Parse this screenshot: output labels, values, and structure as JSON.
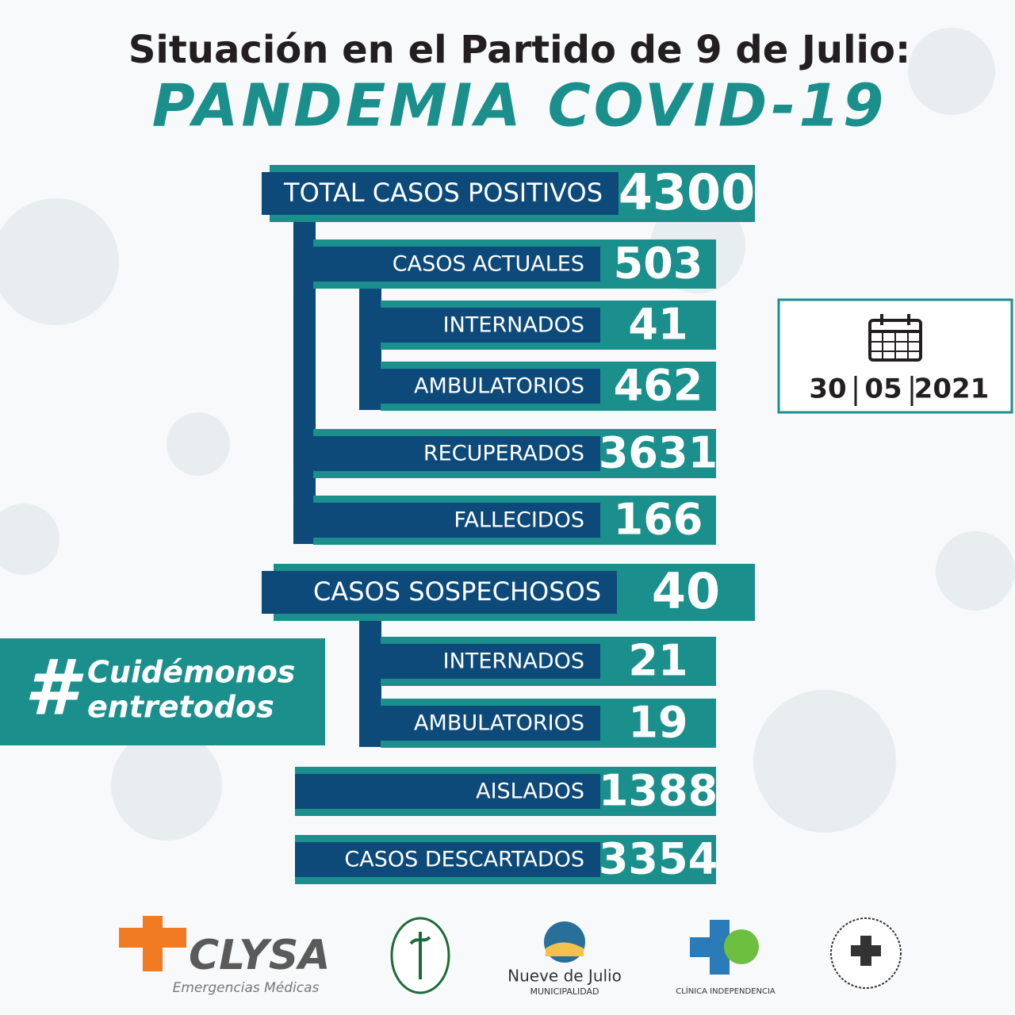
{
  "header": {
    "title": "Situación en el Partido de 9 de Julio:",
    "subtitle": "PANDEMIA COVID-19"
  },
  "rows": [
    {
      "label": "TOTAL CASOS POSITIVOS",
      "value": 4300
    },
    {
      "label": "CASOS ACTUALES",
      "value": 503
    },
    {
      "label": "INTERNADOS",
      "value": 41
    },
    {
      "label": "AMBULATORIOS",
      "value": 462
    },
    {
      "label": "RECUPERADOS",
      "value": 3631
    },
    {
      "label": "FALLECIDOS",
      "value": 166
    },
    {
      "label": "CASOS SOSPECHOSOS",
      "value": 40
    },
    {
      "label": "INTERNADOS",
      "value": 21
    },
    {
      "label": "AMBULATORIOS",
      "value": 19
    },
    {
      "label": "AISLADOS",
      "value": 1388
    },
    {
      "label": "CASOS DESCARTADOS",
      "value": 3354
    }
  ],
  "date": {
    "day": "30",
    "month": "05",
    "year": "2021"
  },
  "hashtag": {
    "symbol": "#",
    "line1": "Cuidémonos",
    "line2": "entretodos"
  },
  "logos": {
    "clysa": "CLYSA",
    "clysa_sub": "Emergencias Médicas",
    "municipio": "Nueve de Julio",
    "municipio_sub": "MUNICIPALIDAD",
    "clinica": "CLÍNICA INDEPENDENCIA"
  }
}
